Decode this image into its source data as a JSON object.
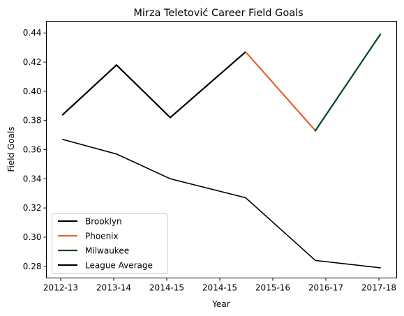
{
  "chart_data": {
    "type": "line",
    "title": "Mirza Teletović Career Field Goals",
    "xlabel": "Year",
    "ylabel": "Field Goals",
    "x_tick_labels": [
      "2012-13",
      "2013-14",
      "2014-15",
      "2014-15",
      "2015-16",
      "2016-17",
      "2017-18"
    ],
    "ylim": [
      0.272,
      0.448
    ],
    "y_ticks": [
      0.28,
      0.3,
      0.32,
      0.34,
      0.36,
      0.38,
      0.4,
      0.42,
      0.44
    ],
    "y_tick_labels": [
      "0.28",
      "0.30",
      "0.32",
      "0.34",
      "0.36",
      "0.38",
      "0.40",
      "0.42",
      "0.44"
    ],
    "grid": false,
    "legend_position": "lower-left",
    "series": [
      {
        "name": "Brooklyn",
        "color": "#000000",
        "points": [
          {
            "x": "2012-13",
            "y": 0.384
          },
          {
            "x": "2013-14",
            "y": 0.418
          },
          {
            "x": "2014-15",
            "y": 0.382
          },
          {
            "x": "2015-16",
            "y": 0.427
          }
        ]
      },
      {
        "name": "Phoenix",
        "color": "#e5622a",
        "points": [
          {
            "x": "2015-16",
            "y": 0.427
          },
          {
            "x": "2016-17",
            "y": 0.373
          }
        ]
      },
      {
        "name": "Milwaukee",
        "color": "#00471b",
        "points": [
          {
            "x": "2016-17",
            "y": 0.373
          },
          {
            "x": "2017-18",
            "y": 0.439
          }
        ]
      },
      {
        "name": "League Average",
        "color": "#000000",
        "points": [
          {
            "x": "2012-13",
            "y": 0.367
          },
          {
            "x": "2013-14",
            "y": 0.357
          },
          {
            "x": "2014-15",
            "y": 0.34
          },
          {
            "x": "2015-16",
            "y": 0.327
          },
          {
            "x": "2016-17",
            "y": 0.284
          },
          {
            "x": "2017-18",
            "y": 0.279
          }
        ]
      }
    ]
  }
}
